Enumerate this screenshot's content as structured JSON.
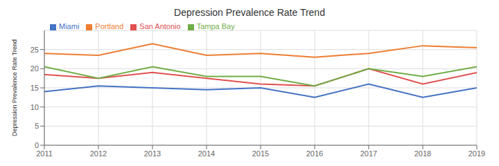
{
  "chart_data": {
    "type": "line",
    "title": "Depression Prevalence Rate Trend",
    "y_label": "Depression Prevalence Rate Trend",
    "x": [
      2011,
      2012,
      2013,
      2014,
      2015,
      2016,
      2017,
      2018,
      2019
    ],
    "series": [
      {
        "name": "Miami",
        "color": "#4472C4",
        "values": [
          14,
          15.5,
          15,
          14.5,
          15,
          12.5,
          16,
          12.5,
          15
        ]
      },
      {
        "name": "Portland",
        "color": "#ED7D31",
        "values": [
          24,
          23.5,
          26.5,
          23.5,
          24,
          23,
          24,
          26,
          25.5
        ]
      },
      {
        "name": "San Antonio",
        "color": "#E05050",
        "values": [
          18.5,
          17.5,
          19,
          17.5,
          16,
          15.5,
          20,
          16,
          19
        ]
      },
      {
        "name": "Tampa Bay",
        "color": "#70AD47",
        "values": [
          20.5,
          17.5,
          20.5,
          18,
          18,
          15.5,
          20,
          18,
          20.5
        ]
      }
    ],
    "xlim": [
      2011,
      2019
    ],
    "xticks": [
      2011,
      2012,
      2013,
      2014,
      2015,
      2016,
      2017,
      2018,
      2019
    ],
    "ylim": [
      0,
      30
    ],
    "yticks": [
      0,
      5,
      10,
      15,
      20,
      25
    ],
    "grid": true,
    "legend": "upper left"
  }
}
